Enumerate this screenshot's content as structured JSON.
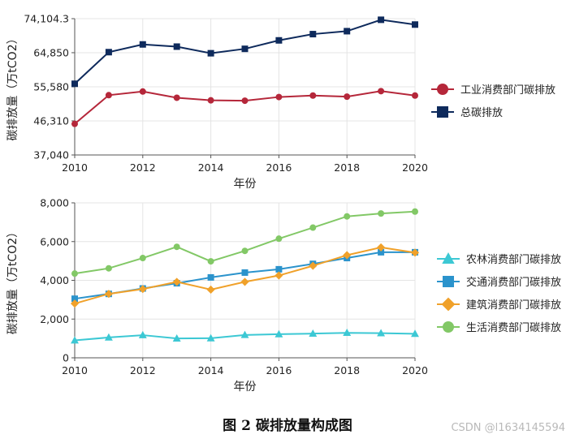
{
  "caption": "图 2  碳排放量构成图",
  "watermark": "CSDN @l1634145594",
  "chart_data": [
    {
      "type": "line",
      "xlabel": "年份",
      "ylabel": "碳排放量（万tCO2）",
      "x": [
        2010,
        2011,
        2012,
        2013,
        2014,
        2015,
        2016,
        2017,
        2018,
        2019,
        2020
      ],
      "xticks": [
        "2010",
        "2012",
        "2014",
        "2016",
        "2018",
        "2020"
      ],
      "xlim": [
        2010,
        2020
      ],
      "ylim": [
        37040,
        74104.3
      ],
      "yticks": [
        37040,
        46310,
        55580,
        64850,
        74104.3
      ],
      "ytick_labels": [
        "37,040",
        "46,310",
        "55,580",
        "64,850",
        "74,104.3"
      ],
      "grid": true,
      "legend_position": "right",
      "series": [
        {
          "name": "工业消费部门碳排放",
          "color": "#b5273a",
          "marker": "circle",
          "values": [
            45500,
            53300,
            54300,
            52600,
            51900,
            51800,
            52800,
            53200,
            52900,
            54400,
            53200
          ]
        },
        {
          "name": "总碳排放",
          "color": "#0e2a5c",
          "marker": "square",
          "values": [
            56400,
            65000,
            67100,
            66500,
            64700,
            65900,
            68200,
            69900,
            70700,
            73800,
            72500
          ]
        }
      ]
    },
    {
      "type": "line",
      "xlabel": "年份",
      "ylabel": "碳排放量（万tCO2）",
      "x": [
        2010,
        2011,
        2012,
        2013,
        2014,
        2015,
        2016,
        2017,
        2018,
        2019,
        2020
      ],
      "xticks": [
        "2010",
        "2012",
        "2014",
        "2016",
        "2018",
        "2020"
      ],
      "xlim": [
        2010,
        2020
      ],
      "ylim": [
        0,
        8000
      ],
      "yticks": [
        0,
        2000,
        4000,
        6000,
        8000
      ],
      "ytick_labels": [
        "0",
        "2,000",
        "4,000",
        "6,000",
        "8,000"
      ],
      "grid": true,
      "legend_position": "right",
      "series": [
        {
          "name": "农林消费部门碳排放",
          "color": "#3cc8d4",
          "marker": "triangle",
          "values": [
            900,
            1050,
            1170,
            1000,
            1010,
            1180,
            1220,
            1250,
            1290,
            1270,
            1240
          ]
        },
        {
          "name": "交通消费部门碳排放",
          "color": "#2b93cc",
          "marker": "square",
          "values": [
            3050,
            3300,
            3580,
            3850,
            4150,
            4400,
            4570,
            4850,
            5150,
            5450,
            5450
          ]
        },
        {
          "name": "建筑消费部门碳排放",
          "color": "#f0a12a",
          "marker": "diamond",
          "values": [
            2800,
            3300,
            3550,
            3920,
            3520,
            3920,
            4250,
            4750,
            5300,
            5700,
            5430
          ]
        },
        {
          "name": "生活消费部门碳排放",
          "color": "#82c866",
          "marker": "circle",
          "values": [
            4350,
            4620,
            5150,
            5730,
            4980,
            5520,
            6150,
            6720,
            7300,
            7450,
            7550
          ]
        }
      ]
    }
  ]
}
